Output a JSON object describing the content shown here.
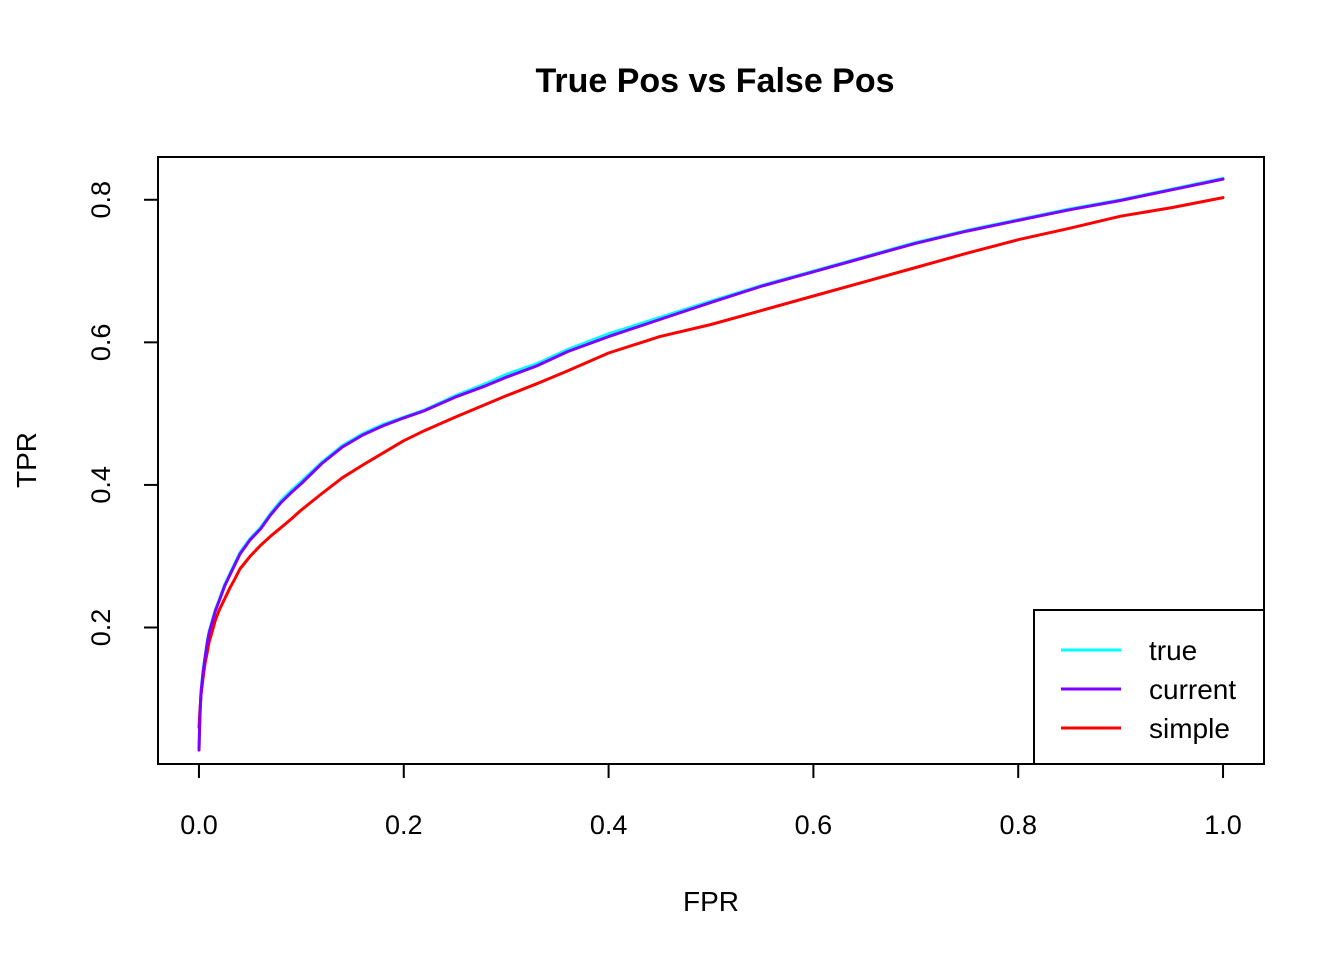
{
  "chart_data": {
    "type": "line",
    "title": "True Pos vs False Pos",
    "xlabel": "FPR",
    "ylabel": "TPR",
    "xlim": [
      -0.04,
      1.04
    ],
    "ylim": [
      0.0085,
      0.86
    ],
    "x_ticks": [
      {
        "value": 0.0,
        "label": "0.0"
      },
      {
        "value": 0.2,
        "label": "0.2"
      },
      {
        "value": 0.4,
        "label": "0.4"
      },
      {
        "value": 0.6,
        "label": "0.6"
      },
      {
        "value": 0.8,
        "label": "0.8"
      },
      {
        "value": 1.0,
        "label": "1.0"
      }
    ],
    "y_ticks": [
      {
        "value": 0.2,
        "label": "0.2"
      },
      {
        "value": 0.4,
        "label": "0.4"
      },
      {
        "value": 0.6,
        "label": "0.6"
      },
      {
        "value": 0.8,
        "label": "0.8"
      }
    ],
    "grid": false,
    "legend_position": "bottom-right",
    "series": [
      {
        "name": "true",
        "color": "#00ffff",
        "x": [
          0.0,
          0.001,
          0.002,
          0.004,
          0.006,
          0.008,
          0.01,
          0.013,
          0.016,
          0.02,
          0.025,
          0.03,
          0.035,
          0.04,
          0.05,
          0.06,
          0.07,
          0.08,
          0.09,
          0.1,
          0.12,
          0.14,
          0.16,
          0.18,
          0.2,
          0.22,
          0.25,
          0.28,
          0.3,
          0.33,
          0.36,
          0.4,
          0.45,
          0.5,
          0.55,
          0.6,
          0.65,
          0.7,
          0.75,
          0.8,
          0.85,
          0.9,
          0.95,
          1.0
        ],
        "y": [
          0.03,
          0.08,
          0.11,
          0.14,
          0.16,
          0.18,
          0.195,
          0.21,
          0.225,
          0.24,
          0.26,
          0.275,
          0.29,
          0.305,
          0.325,
          0.34,
          0.36,
          0.378,
          0.392,
          0.405,
          0.432,
          0.455,
          0.472,
          0.485,
          0.495,
          0.505,
          0.525,
          0.542,
          0.555,
          0.57,
          0.59,
          0.612,
          0.635,
          0.658,
          0.68,
          0.7,
          0.72,
          0.74,
          0.757,
          0.772,
          0.787,
          0.8,
          0.815,
          0.83
        ]
      },
      {
        "name": "current",
        "color": "#7f00ff",
        "x": [
          0.0,
          0.001,
          0.002,
          0.004,
          0.006,
          0.008,
          0.01,
          0.013,
          0.016,
          0.02,
          0.025,
          0.03,
          0.035,
          0.04,
          0.05,
          0.06,
          0.07,
          0.08,
          0.09,
          0.1,
          0.12,
          0.14,
          0.16,
          0.18,
          0.2,
          0.22,
          0.25,
          0.28,
          0.3,
          0.33,
          0.36,
          0.4,
          0.45,
          0.5,
          0.55,
          0.6,
          0.65,
          0.7,
          0.75,
          0.8,
          0.85,
          0.9,
          0.95,
          1.0
        ],
        "y": [
          0.028,
          0.078,
          0.108,
          0.138,
          0.158,
          0.178,
          0.193,
          0.208,
          0.223,
          0.238,
          0.258,
          0.273,
          0.288,
          0.303,
          0.323,
          0.338,
          0.358,
          0.375,
          0.389,
          0.402,
          0.43,
          0.453,
          0.47,
          0.483,
          0.494,
          0.504,
          0.523,
          0.539,
          0.551,
          0.567,
          0.587,
          0.608,
          0.632,
          0.656,
          0.679,
          0.699,
          0.719,
          0.739,
          0.756,
          0.771,
          0.786,
          0.799,
          0.814,
          0.829
        ]
      },
      {
        "name": "simple",
        "color": "#ff0000",
        "x": [
          0.0,
          0.001,
          0.002,
          0.004,
          0.006,
          0.008,
          0.01,
          0.013,
          0.016,
          0.02,
          0.025,
          0.03,
          0.035,
          0.04,
          0.05,
          0.06,
          0.07,
          0.08,
          0.09,
          0.1,
          0.12,
          0.14,
          0.16,
          0.18,
          0.2,
          0.22,
          0.25,
          0.28,
          0.3,
          0.33,
          0.36,
          0.4,
          0.45,
          0.5,
          0.55,
          0.6,
          0.65,
          0.7,
          0.75,
          0.8,
          0.85,
          0.9,
          0.95,
          1.0
        ],
        "y": [
          0.06,
          0.085,
          0.105,
          0.13,
          0.15,
          0.165,
          0.18,
          0.195,
          0.21,
          0.225,
          0.24,
          0.255,
          0.268,
          0.282,
          0.3,
          0.315,
          0.328,
          0.34,
          0.352,
          0.365,
          0.388,
          0.41,
          0.428,
          0.445,
          0.462,
          0.476,
          0.495,
          0.513,
          0.525,
          0.542,
          0.56,
          0.585,
          0.608,
          0.625,
          0.645,
          0.665,
          0.685,
          0.705,
          0.725,
          0.744,
          0.76,
          0.777,
          0.789,
          0.803
        ]
      }
    ]
  }
}
